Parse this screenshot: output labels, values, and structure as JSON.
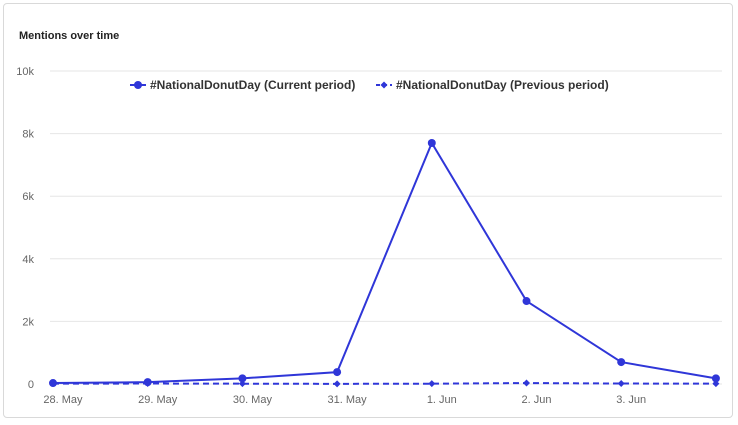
{
  "card": {
    "title": "Mentions over time"
  },
  "colors": {
    "series": "#2f36d8",
    "grid": "#e6e6e6",
    "text": "#666666"
  },
  "chart_data": {
    "type": "line",
    "title": "Mentions over time",
    "xlabel": "",
    "ylabel": "",
    "ylim": [
      0,
      10000
    ],
    "yticks": [
      0,
      2000,
      4000,
      6000,
      8000,
      10000
    ],
    "ytick_labels": [
      "0",
      "2k",
      "4k",
      "6k",
      "8k",
      "10k"
    ],
    "x_labels": [
      "28. May",
      "29. May",
      "30. May",
      "31. May",
      "1. Jun",
      "2. Jun",
      "3. Jun"
    ],
    "x_points": 8,
    "grid": true,
    "legend_position": "top-center",
    "series": [
      {
        "name": "#NationalDonutDay (Current period)",
        "style": "solid",
        "marker": "circle",
        "values": [
          30,
          60,
          180,
          380,
          7700,
          2650,
          700,
          180
        ]
      },
      {
        "name": "#NationalDonutDay (Previous period)",
        "style": "dashed",
        "marker": "diamond",
        "values": [
          10,
          15,
          10,
          5,
          10,
          30,
          15,
          10
        ]
      }
    ]
  }
}
